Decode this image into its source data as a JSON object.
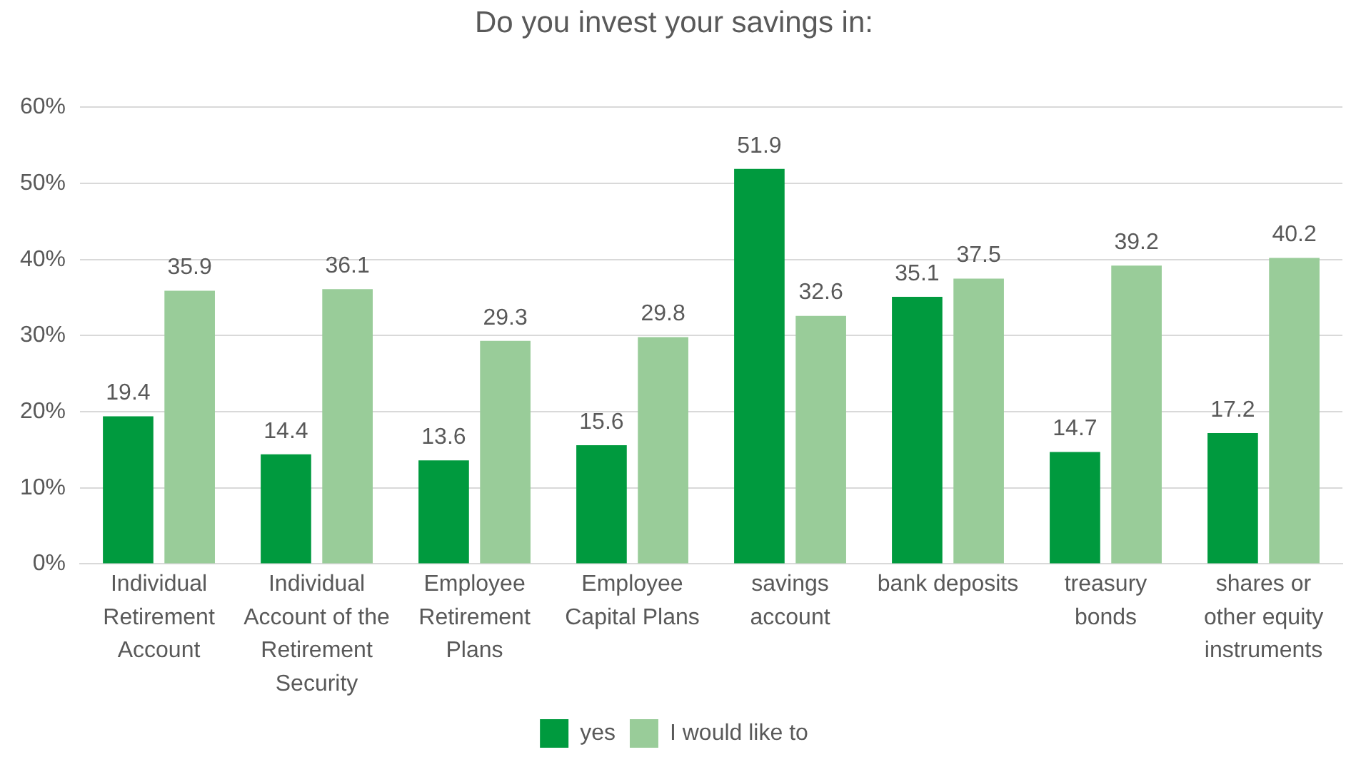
{
  "chart_data": {
    "type": "bar",
    "title": "Do you invest your savings in:",
    "categories": [
      "Individual Retirement Account",
      "Individual Account of the Retirement Security",
      "Employee Retirement Plans",
      "Employee Capital Plans",
      "savings account",
      "bank deposits",
      "treasury bonds",
      "shares or other equity instruments"
    ],
    "series": [
      {
        "name": "yes",
        "color": "#009a3e",
        "values": [
          19.4,
          14.4,
          13.6,
          15.6,
          51.9,
          35.1,
          14.7,
          17.2
        ]
      },
      {
        "name": "I would like to",
        "color": "#99cc99",
        "values": [
          35.9,
          36.1,
          29.3,
          29.8,
          32.6,
          37.5,
          39.2,
          40.2
        ]
      }
    ],
    "ylim": [
      0,
      60
    ],
    "yticks": [
      {
        "value": 0,
        "label": "0%"
      },
      {
        "value": 10,
        "label": "10%"
      },
      {
        "value": 20,
        "label": "20%"
      },
      {
        "value": 30,
        "label": "30%"
      },
      {
        "value": 40,
        "label": "40%"
      },
      {
        "value": 50,
        "label": "50%"
      },
      {
        "value": 60,
        "label": "60%"
      }
    ],
    "grid": "y",
    "legend": "bottom",
    "data_labels": true
  }
}
